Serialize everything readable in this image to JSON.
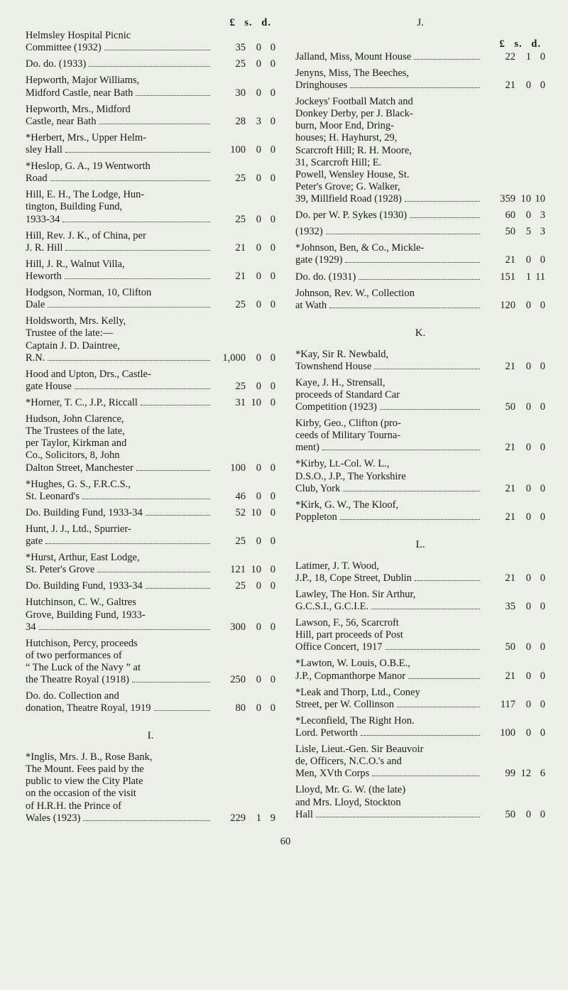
{
  "page_number": "60",
  "currency_header": {
    "l": "£",
    "s": "s.",
    "d": "d."
  },
  "currency_header_right": {
    "l": "£",
    "s": "s.",
    "d": "d."
  },
  "left_entries": [
    {
      "lines": [
        "Helmsley Hospital Picnic"
      ],
      "tail": "Committee (1932)",
      "L": "35",
      "S": "0",
      "D": "0"
    },
    {
      "lines": [],
      "tail": "Do. do. (1933)",
      "L": "25",
      "S": "0",
      "D": "0"
    },
    {
      "lines": [
        "Hepworth, Major Williams,"
      ],
      "tail": "Midford Castle, near Bath",
      "L": "30",
      "S": "0",
      "D": "0"
    },
    {
      "lines": [
        "Hepworth, Mrs., Midford"
      ],
      "tail": "Castle, near Bath",
      "L": "28",
      "S": "3",
      "D": "0"
    },
    {
      "lines": [
        "*Herbert, Mrs., Upper Helm-"
      ],
      "tail": "sley Hall",
      "L": "100",
      "S": "0",
      "D": "0"
    },
    {
      "lines": [
        "*Heslop, G. A., 19 Wentworth"
      ],
      "tail": "Road",
      "L": "25",
      "S": "0",
      "D": "0"
    },
    {
      "lines": [
        "Hill, E. H., The Lodge, Hun-",
        "tington, Building Fund,"
      ],
      "tail": "1933-34",
      "L": "25",
      "S": "0",
      "D": "0"
    },
    {
      "lines": [
        "Hill, Rev. J. K., of China, per"
      ],
      "tail": "J. R. Hill",
      "L": "21",
      "S": "0",
      "D": "0"
    },
    {
      "lines": [
        "Hill, J. R., Walnut Villa,"
      ],
      "tail": "Heworth",
      "L": "21",
      "S": "0",
      "D": "0"
    },
    {
      "lines": [
        "Hodgson, Norman, 10, Clifton"
      ],
      "tail": "Dale",
      "L": "25",
      "S": "0",
      "D": "0"
    },
    {
      "lines": [
        "Holdsworth, Mrs. Kelly,",
        "Trustee of the late:—",
        "Captain J. D. Daintree,"
      ],
      "tail": "R.N.",
      "L": "1,000",
      "S": "0",
      "D": "0"
    },
    {
      "lines": [
        "Hood and Upton, Drs., Castle-"
      ],
      "tail": "gate House",
      "L": "25",
      "S": "0",
      "D": "0"
    },
    {
      "lines": [],
      "tail": "*Horner, T. C., J.P., Riccall",
      "L": "31",
      "S": "10",
      "D": "0"
    },
    {
      "lines": [
        "Hudson, John Clarence,",
        "The Trustees of the late,",
        "per Taylor, Kirkman and",
        "Co., Solicitors, 8, John"
      ],
      "tail": "Dalton Street, Manchester",
      "L": "100",
      "S": "0",
      "D": "0"
    },
    {
      "lines": [
        "*Hughes, G. S., F.R.C.S.,"
      ],
      "tail": "St. Leonard's",
      "L": "46",
      "S": "0",
      "D": "0"
    },
    {
      "lines": [],
      "tail": "Do. Building Fund, 1933-34",
      "L": "52",
      "S": "10",
      "D": "0"
    },
    {
      "lines": [
        "Hunt, J. J., Ltd., Spurrier-"
      ],
      "tail": "gate",
      "L": "25",
      "S": "0",
      "D": "0"
    },
    {
      "lines": [
        "*Hurst, Arthur, East Lodge,"
      ],
      "tail": "St. Peter's Grove",
      "L": "121",
      "S": "10",
      "D": "0"
    },
    {
      "lines": [],
      "tail": "Do. Building Fund, 1933-34",
      "L": "25",
      "S": "0",
      "D": "0"
    },
    {
      "lines": [
        "Hutchinson, C. W., Galtres",
        "Grove, Building Fund, 1933-"
      ],
      "tail": "34",
      "L": "300",
      "S": "0",
      "D": "0"
    },
    {
      "lines": [
        "Hutchison, Percy, proceeds",
        "of two performances of",
        "“ The Luck of the Navy ” at"
      ],
      "tail": "the Theatre Royal (1918)",
      "L": "250",
      "S": "0",
      "D": "0"
    },
    {
      "lines": [
        "Do. do. Collection and"
      ],
      "tail": "donation, Theatre Royal, 1919",
      "L": "80",
      "S": "0",
      "D": "0"
    }
  ],
  "left_section_head": "I.",
  "left_entries_2": [
    {
      "lines": [
        "*Inglis, Mrs. J. B., Rose Bank,",
        "The Mount. Fees paid by the",
        "public to view the City Plate",
        "on the occasion of the visit",
        "of H.R.H. the Prince of"
      ],
      "tail": "Wales (1923)",
      "L": "229",
      "S": "1",
      "D": "9"
    }
  ],
  "right_section_head_j": "J.",
  "right_entries_j": [
    {
      "lines": [],
      "tail": "Jalland, Miss, Mount House",
      "L": "22",
      "S": "1",
      "D": "0"
    },
    {
      "lines": [
        "Jenyns, Miss, The Beeches,"
      ],
      "tail": "Dringhouses",
      "L": "21",
      "S": "0",
      "D": "0"
    },
    {
      "lines": [
        "Jockeys' Football Match and",
        "Donkey Derby, per J. Black-",
        "burn, Moor End, Dring-",
        "houses; H. Hayhurst, 29,",
        "Scarcroft Hill; R. H. Moore,",
        "31, Scarcroft Hill; E.",
        "Powell, Wensley House, St.",
        "Peter's Grove; G. Walker,"
      ],
      "tail": "39, Millfield Road (1928)",
      "L": "359",
      "S": "10",
      "D": "10"
    },
    {
      "lines": [],
      "tail": "Do. per W. P. Sykes (1930)",
      "L": "60",
      "S": "0",
      "D": "3"
    },
    {
      "lines": [],
      "tail": "(1932)",
      "L": "50",
      "S": "5",
      "D": "3"
    },
    {
      "lines": [
        "*Johnson, Ben, & Co., Mickle-"
      ],
      "tail": "gate (1929)",
      "L": "21",
      "S": "0",
      "D": "0"
    },
    {
      "lines": [],
      "tail": "Do. do. (1931)",
      "L": "151",
      "S": "1",
      "D": "11"
    },
    {
      "lines": [
        "Johnson, Rev. W., Collection"
      ],
      "tail": "at Wath",
      "L": "120",
      "S": "0",
      "D": "0"
    }
  ],
  "right_section_head_k": "K.",
  "right_entries_k": [
    {
      "lines": [
        "*Kay, Sir R. Newbald,"
      ],
      "tail": "Townshend House",
      "L": "21",
      "S": "0",
      "D": "0"
    },
    {
      "lines": [
        "Kaye, J. H., Strensall,",
        "proceeds of Standard Car"
      ],
      "tail": "Competition (1923)",
      "L": "50",
      "S": "0",
      "D": "0"
    },
    {
      "lines": [
        "Kirby, Geo., Clifton (pro-",
        "ceeds of Military Tourna-"
      ],
      "tail": "ment)",
      "L": "21",
      "S": "0",
      "D": "0"
    },
    {
      "lines": [
        "*Kirby, Lt.-Col. W. L.,",
        "D.S.O., J.P., The Yorkshire"
      ],
      "tail": "Club, York",
      "L": "21",
      "S": "0",
      "D": "0"
    },
    {
      "lines": [
        "*Kirk, G. W., The Kloof,"
      ],
      "tail": "Poppleton",
      "L": "21",
      "S": "0",
      "D": "0"
    }
  ],
  "right_section_head_l": "L.",
  "right_entries_l": [
    {
      "lines": [
        "Latimer, J. T. Wood,"
      ],
      "tail": "J.P., 18, Cope Street, Dublin",
      "L": "21",
      "S": "0",
      "D": "0"
    },
    {
      "lines": [
        "Lawley, The Hon. Sir Arthur,"
      ],
      "tail": "G.C.S.I., G.C.I.E.",
      "L": "35",
      "S": "0",
      "D": "0"
    },
    {
      "lines": [
        "Lawson, F., 56, Scarcroft",
        "Hill, part proceeds of Post"
      ],
      "tail": "Office Concert, 1917",
      "L": "50",
      "S": "0",
      "D": "0"
    },
    {
      "lines": [
        "*Lawton, W. Louis, O.B.E.,"
      ],
      "tail": "J.P., Copmanthorpe Manor",
      "L": "21",
      "S": "0",
      "D": "0"
    },
    {
      "lines": [
        "*Leak and Thorp, Ltd., Coney"
      ],
      "tail": "Street, per W. Collinson",
      "L": "117",
      "S": "0",
      "D": "0"
    },
    {
      "lines": [
        "*Leconfield, The Right Hon."
      ],
      "tail": "Lord. Petworth",
      "L": "100",
      "S": "0",
      "D": "0"
    },
    {
      "lines": [
        "Lisle, Lieut.-Gen. Sir Beauvoir",
        "de, Officers, N.C.O.'s and"
      ],
      "tail": "Men, XVth Corps",
      "L": "99",
      "S": "12",
      "D": "6"
    },
    {
      "lines": [
        "Lloyd, Mr. G. W. (the late)",
        "and Mrs. Lloyd, Stockton"
      ],
      "tail": "Hall",
      "L": "50",
      "S": "0",
      "D": "0"
    }
  ]
}
